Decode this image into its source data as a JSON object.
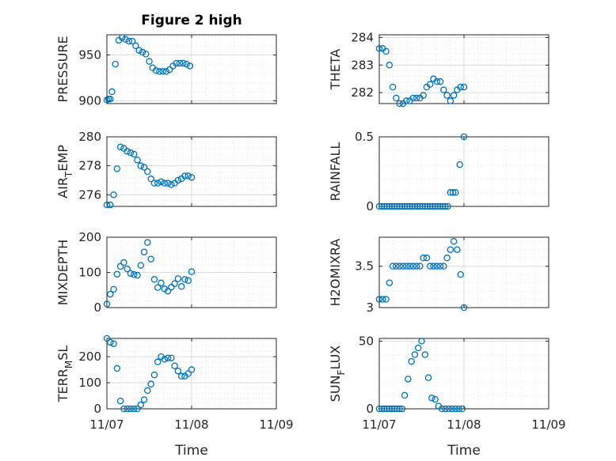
{
  "figure_title": "Figure 2 high",
  "x_tick_labels": [
    "11/07",
    "11/08",
    "11/09"
  ],
  "x_axis_label": "Time",
  "colors": {
    "marker": "#0072BD",
    "axes": "#262626",
    "grid": "#dcdcdc"
  },
  "chart_data": [
    {
      "type": "scatter",
      "ylabel": "PRESSURE",
      "ylabel_main": "PRESSURE",
      "ylabel_sub": "",
      "ylabel_end": "",
      "ylim": [
        897,
        972
      ],
      "yticks": [
        900,
        950
      ],
      "ytick_labels": [
        "900",
        "950"
      ],
      "xlim": [
        0,
        2
      ],
      "x": [
        0.0,
        0.02,
        0.04,
        0.06,
        0.1,
        0.14,
        0.18,
        0.22,
        0.26,
        0.3,
        0.34,
        0.38,
        0.42,
        0.46,
        0.5,
        0.54,
        0.58,
        0.62,
        0.66,
        0.7,
        0.74,
        0.78,
        0.82,
        0.86,
        0.9,
        0.94,
        0.98
      ],
      "values": [
        901,
        902,
        902,
        910,
        940,
        966,
        969,
        967,
        965,
        965,
        960,
        955,
        953,
        951,
        943,
        936,
        933,
        932,
        932,
        932,
        934,
        938,
        941,
        941,
        941,
        940,
        938
      ]
    },
    {
      "type": "scatter",
      "ylabel": "THETA",
      "ylabel_main": "THETA",
      "ylabel_sub": "",
      "ylabel_end": "",
      "ylim": [
        281.6,
        284.1
      ],
      "yticks": [
        282,
        283,
        284
      ],
      "ytick_labels": [
        "282",
        "283",
        "284"
      ],
      "xlim": [
        0,
        2
      ],
      "x": [
        0.0,
        0.04,
        0.08,
        0.12,
        0.16,
        0.2,
        0.24,
        0.28,
        0.32,
        0.36,
        0.4,
        0.44,
        0.48,
        0.52,
        0.56,
        0.6,
        0.64,
        0.68,
        0.72,
        0.76,
        0.8,
        0.84,
        0.88,
        0.92,
        0.96,
        1.0
      ],
      "values": [
        283.6,
        283.6,
        283.5,
        283.0,
        282.2,
        281.8,
        281.6,
        281.6,
        281.7,
        281.7,
        281.8,
        281.8,
        281.8,
        281.9,
        282.2,
        282.3,
        282.5,
        282.4,
        282.4,
        282.1,
        281.9,
        281.7,
        281.9,
        282.1,
        282.2,
        282.2
      ]
    },
    {
      "type": "scatter",
      "ylabel": "AIR_TEMP",
      "ylabel_main": "AIR",
      "ylabel_sub": "T",
      "ylabel_end": "EMP",
      "ylim": [
        275.2,
        280.0
      ],
      "yticks": [
        276,
        278,
        280
      ],
      "ytick_labels": [
        "276",
        "278",
        "280"
      ],
      "xlim": [
        0,
        2
      ],
      "x": [
        0.0,
        0.04,
        0.08,
        0.12,
        0.16,
        0.2,
        0.24,
        0.28,
        0.32,
        0.36,
        0.4,
        0.44,
        0.48,
        0.52,
        0.56,
        0.6,
        0.64,
        0.68,
        0.72,
        0.76,
        0.8,
        0.84,
        0.88,
        0.92,
        0.96,
        1.0
      ],
      "values": [
        275.3,
        275.3,
        276.0,
        277.8,
        279.3,
        279.2,
        279.0,
        278.9,
        278.8,
        278.4,
        278.0,
        277.9,
        277.6,
        277.1,
        276.8,
        276.8,
        276.9,
        276.8,
        276.8,
        276.7,
        276.8,
        277.0,
        277.1,
        277.3,
        277.3,
        277.2
      ]
    },
    {
      "type": "scatter",
      "ylabel": "RAINFALL",
      "ylabel_main": "RAINFALL",
      "ylabel_sub": "",
      "ylabel_end": "",
      "ylim": [
        0,
        0.5
      ],
      "yticks": [
        0,
        0.5
      ],
      "ytick_labels": [
        "0",
        "0.5"
      ],
      "xlim": [
        0,
        2
      ],
      "x": [
        0.0,
        0.03,
        0.06,
        0.09,
        0.12,
        0.15,
        0.18,
        0.21,
        0.24,
        0.27,
        0.3,
        0.33,
        0.36,
        0.39,
        0.42,
        0.45,
        0.48,
        0.51,
        0.54,
        0.57,
        0.6,
        0.63,
        0.66,
        0.69,
        0.72,
        0.75,
        0.78,
        0.81,
        0.84,
        0.87,
        0.9,
        0.95,
        1.0
      ],
      "values": [
        0,
        0,
        0,
        0,
        0,
        0,
        0,
        0,
        0,
        0,
        0,
        0,
        0,
        0,
        0,
        0,
        0,
        0,
        0,
        0,
        0,
        0,
        0,
        0,
        0,
        0,
        0,
        0,
        0.1,
        0.1,
        0.1,
        0.3,
        0.5
      ]
    },
    {
      "type": "scatter",
      "ylabel": "MIXDEPTH",
      "ylabel_main": "MIXDEPTH",
      "ylabel_sub": "",
      "ylabel_end": "",
      "ylim": [
        0,
        200
      ],
      "yticks": [
        0,
        100,
        200
      ],
      "ytick_labels": [
        "0",
        "100",
        "200"
      ],
      "xlim": [
        0,
        2
      ],
      "x": [
        0.0,
        0.04,
        0.08,
        0.12,
        0.16,
        0.2,
        0.24,
        0.28,
        0.32,
        0.36,
        0.4,
        0.44,
        0.48,
        0.52,
        0.56,
        0.6,
        0.64,
        0.68,
        0.72,
        0.76,
        0.8,
        0.84,
        0.88,
        0.92,
        0.96,
        1.0
      ],
      "values": [
        10,
        38,
        52,
        95,
        117,
        128,
        110,
        97,
        94,
        92,
        120,
        158,
        185,
        138,
        80,
        57,
        70,
        53,
        47,
        58,
        68,
        82,
        60,
        80,
        77,
        102
      ]
    },
    {
      "type": "scatter",
      "ylabel": "H2OMIXRA",
      "ylabel_main": "H2OMIXRA",
      "ylabel_sub": "",
      "ylabel_end": "",
      "ylim": [
        3.0,
        3.85
      ],
      "yticks": [
        3,
        3.5
      ],
      "ytick_labels": [
        "3",
        "3.5"
      ],
      "xlim": [
        0,
        2
      ],
      "x": [
        0.0,
        0.04,
        0.08,
        0.12,
        0.16,
        0.2,
        0.24,
        0.28,
        0.32,
        0.36,
        0.4,
        0.44,
        0.48,
        0.52,
        0.56,
        0.6,
        0.64,
        0.68,
        0.72,
        0.76,
        0.8,
        0.84,
        0.88,
        0.92,
        0.96,
        1.0
      ],
      "values": [
        3.1,
        3.1,
        3.1,
        3.3,
        3.5,
        3.5,
        3.5,
        3.5,
        3.5,
        3.5,
        3.5,
        3.5,
        3.5,
        3.6,
        3.6,
        3.5,
        3.5,
        3.5,
        3.5,
        3.5,
        3.6,
        3.7,
        3.8,
        3.7,
        3.4,
        3.0
      ]
    },
    {
      "type": "scatter",
      "ylabel": "TERR_MSL",
      "ylabel_main": "TERR",
      "ylabel_sub": "M",
      "ylabel_end": "SL",
      "ylim": [
        0,
        270
      ],
      "yticks": [
        0,
        100,
        200
      ],
      "ytick_labels": [
        "0",
        "100",
        "200"
      ],
      "xlim": [
        0,
        2
      ],
      "x": [
        0.0,
        0.04,
        0.08,
        0.12,
        0.16,
        0.2,
        0.24,
        0.28,
        0.32,
        0.36,
        0.4,
        0.44,
        0.48,
        0.52,
        0.56,
        0.6,
        0.64,
        0.68,
        0.72,
        0.76,
        0.8,
        0.84,
        0.88,
        0.92,
        0.96,
        1.0
      ],
      "values": [
        270,
        255,
        250,
        155,
        30,
        0,
        0,
        0,
        0,
        0,
        15,
        35,
        70,
        95,
        130,
        180,
        200,
        190,
        195,
        195,
        165,
        145,
        125,
        125,
        135,
        150
      ]
    },
    {
      "type": "scatter",
      "ylabel": "SUN_FLUX",
      "ylabel_main": "SUN",
      "ylabel_sub": "F",
      "ylabel_end": "LUX",
      "ylim": [
        0,
        52
      ],
      "yticks": [
        0,
        50
      ],
      "ytick_labels": [
        "0",
        "50"
      ],
      "xlim": [
        0,
        2
      ],
      "x": [
        0.0,
        0.03,
        0.06,
        0.09,
        0.12,
        0.15,
        0.18,
        0.21,
        0.24,
        0.27,
        0.3,
        0.34,
        0.38,
        0.42,
        0.46,
        0.5,
        0.54,
        0.58,
        0.62,
        0.66,
        0.7,
        0.74,
        0.78,
        0.82,
        0.86,
        0.9,
        0.94,
        0.98
      ],
      "values": [
        0,
        0,
        0,
        0,
        0,
        0,
        0,
        0,
        0,
        0,
        10,
        22,
        35,
        40,
        45,
        50,
        40,
        23,
        8,
        7,
        2,
        0,
        0,
        0,
        0,
        0,
        0,
        0
      ]
    }
  ]
}
